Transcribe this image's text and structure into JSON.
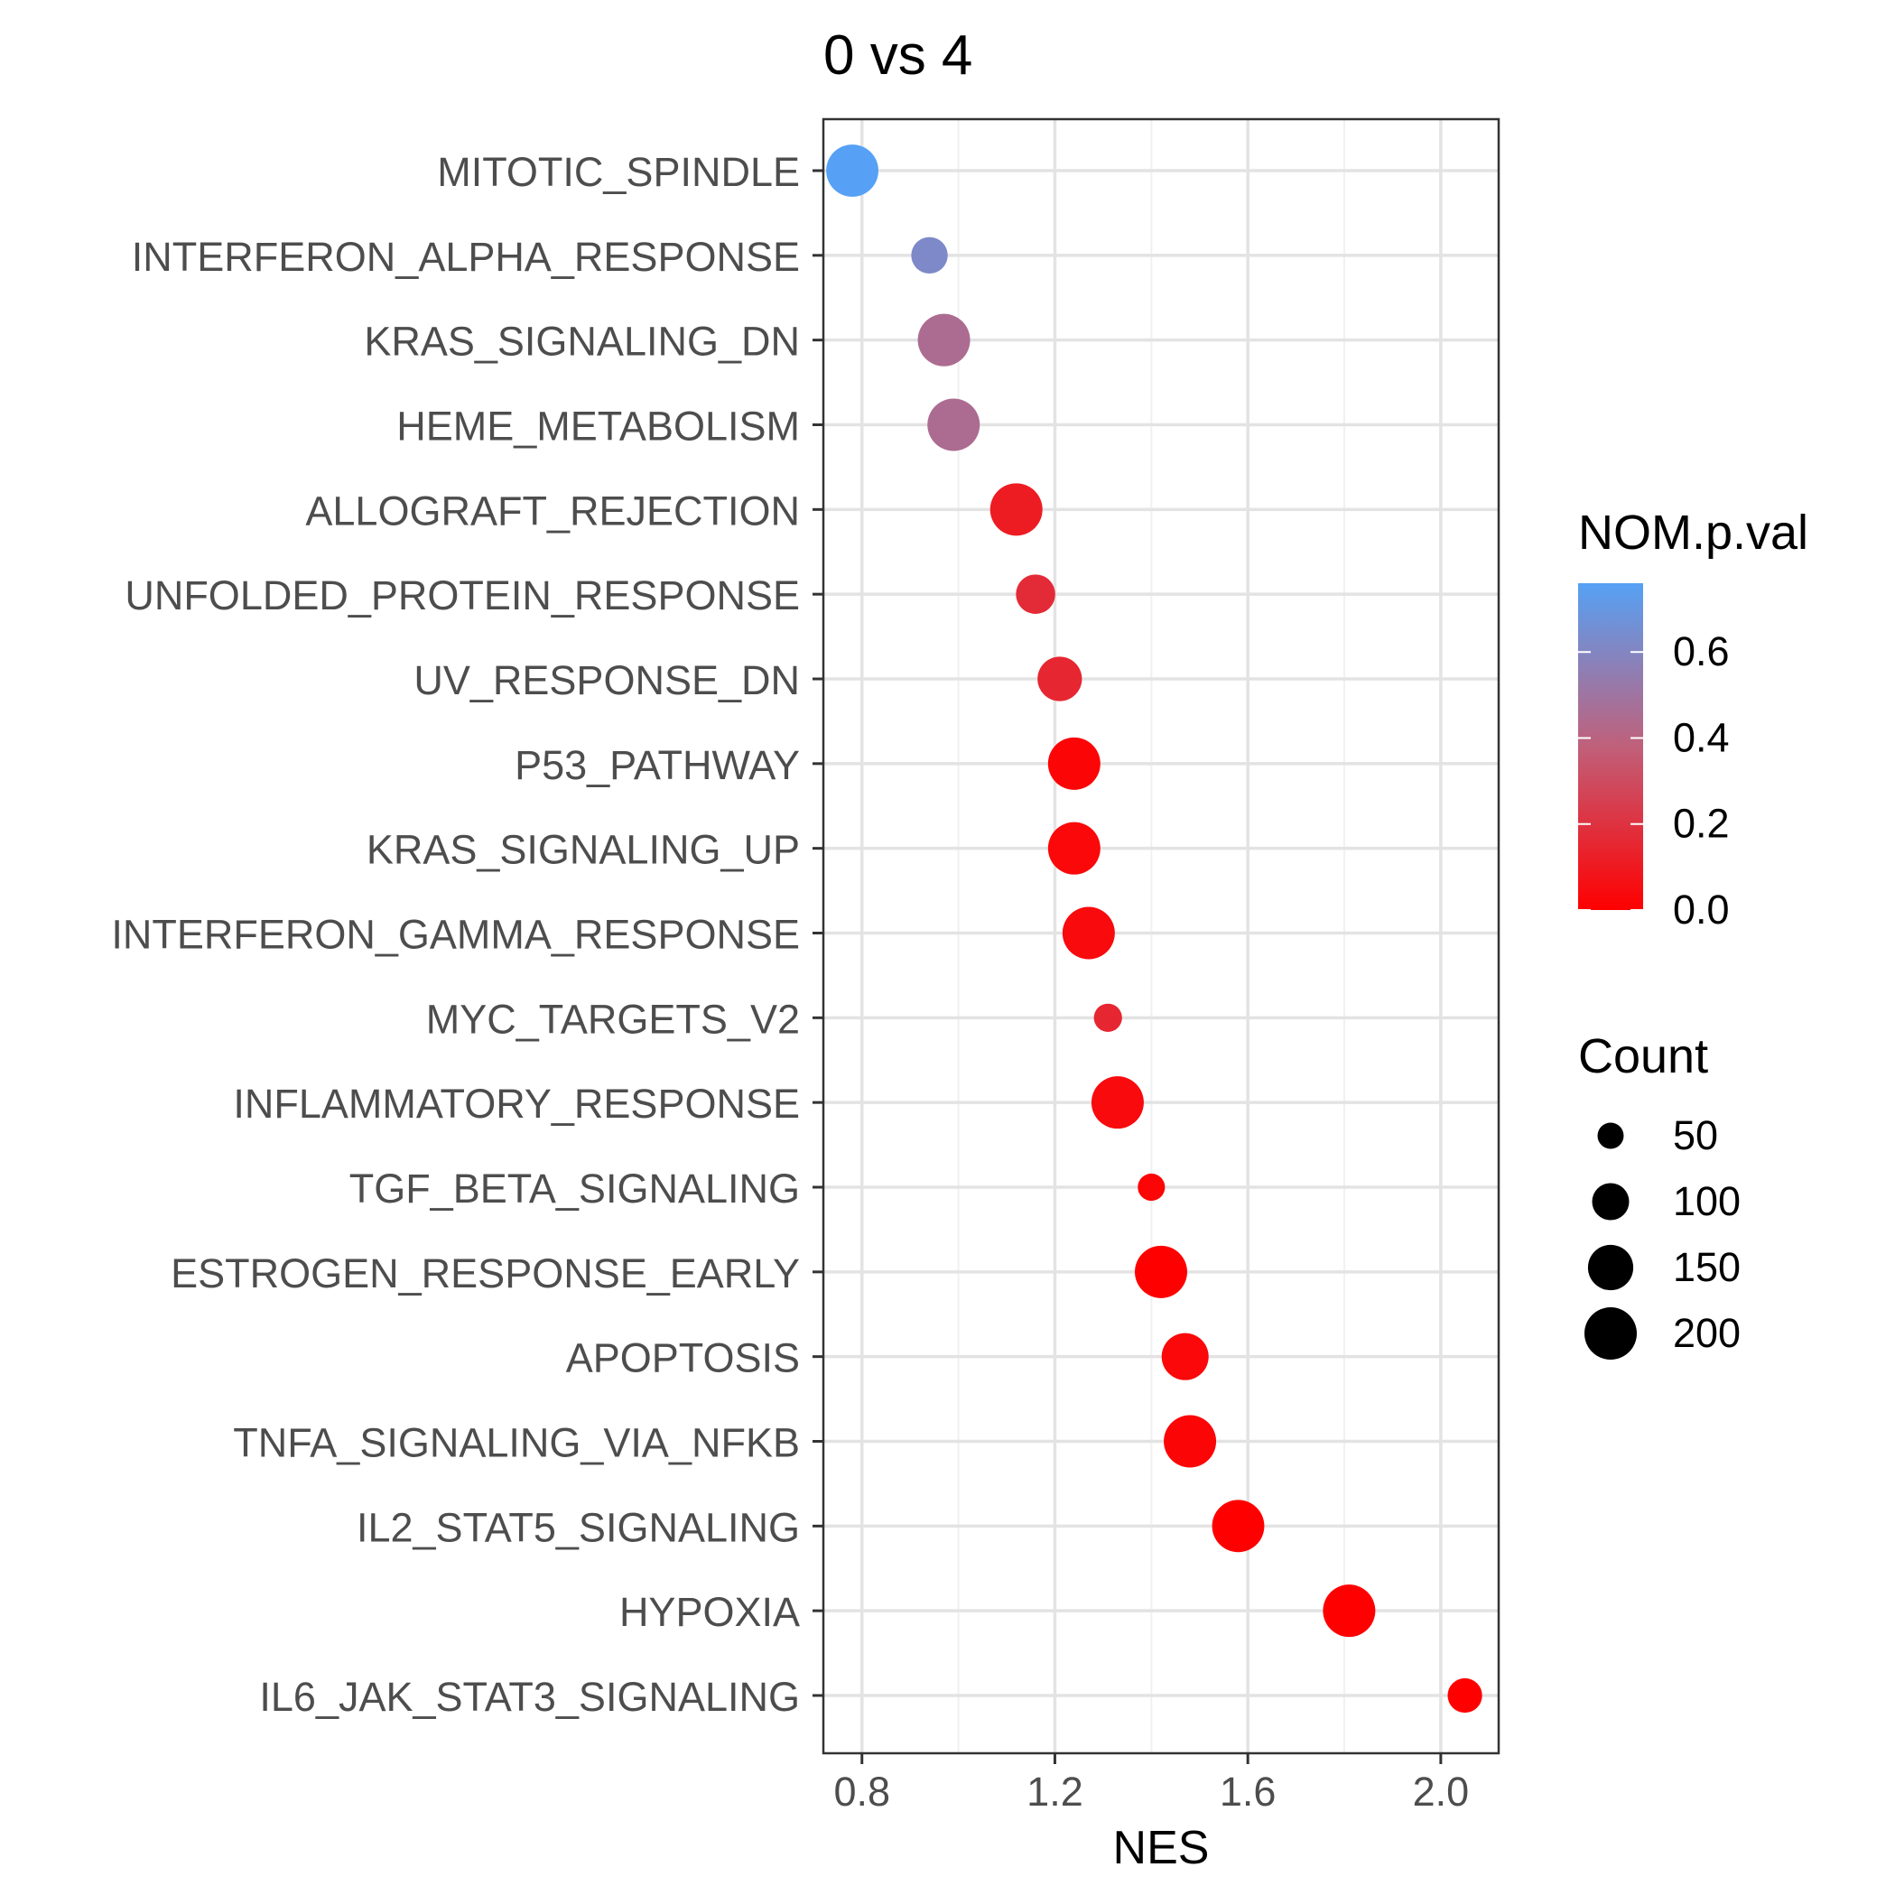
{
  "chart_data": {
    "type": "scatter",
    "title": "0 vs 4",
    "xlabel": "NES",
    "ylabel": "",
    "xlim": [
      0.72,
      2.12
    ],
    "xticks": [
      "0.8",
      "1.2",
      "1.6",
      "2.0"
    ],
    "grid": true,
    "legend_position": "right",
    "color_legend": {
      "title": "NOM.p.val",
      "range": [
        0.0,
        0.76
      ],
      "low_color": "#ff0000",
      "mid_color": "#c0607a",
      "high_color": "#56a1f5",
      "ticks": [
        "0.0",
        "0.2",
        "0.4",
        "0.6"
      ]
    },
    "size_legend": {
      "title": "Count",
      "labels": [
        "50",
        "100",
        "150",
        "200"
      ]
    },
    "points": [
      {
        "term": "IL6_JAK_STAT3_SIGNALING",
        "nes": 2.05,
        "pval": 0.0,
        "count": 87
      },
      {
        "term": "HYPOXIA",
        "nes": 1.81,
        "pval": 0.0,
        "count": 200
      },
      {
        "term": "IL2_STAT5_SIGNALING",
        "nes": 1.58,
        "pval": 0.0,
        "count": 199
      },
      {
        "term": "TNFA_SIGNALING_VIA_NFKB",
        "nes": 1.48,
        "pval": 0.02,
        "count": 200
      },
      {
        "term": "APOPTOSIS",
        "nes": 1.47,
        "pval": 0.03,
        "count": 161
      },
      {
        "term": "ESTROGEN_RESPONSE_EARLY",
        "nes": 1.42,
        "pval": 0.0,
        "count": 200
      },
      {
        "term": "TGF_BETA_SIGNALING",
        "nes": 1.4,
        "pval": 0.02,
        "count": 54
      },
      {
        "term": "INFLAMMATORY_RESPONSE",
        "nes": 1.33,
        "pval": 0.04,
        "count": 200
      },
      {
        "term": "MYC_TARGETS_V2",
        "nes": 1.31,
        "pval": 0.15,
        "count": 58
      },
      {
        "term": "INTERFERON_GAMMA_RESPONSE",
        "nes": 1.27,
        "pval": 0.04,
        "count": 200
      },
      {
        "term": "KRAS_SIGNALING_UP",
        "nes": 1.24,
        "pval": 0.03,
        "count": 200
      },
      {
        "term": "P53_PATHWAY",
        "nes": 1.24,
        "pval": 0.02,
        "count": 200
      },
      {
        "term": "UV_RESPONSE_DN",
        "nes": 1.21,
        "pval": 0.15,
        "count": 144
      },
      {
        "term": "UNFOLDED_PROTEIN_RESPONSE",
        "nes": 1.16,
        "pval": 0.17,
        "count": 113
      },
      {
        "term": "ALLOGRAFT_REJECTION",
        "nes": 1.12,
        "pval": 0.11,
        "count": 200
      },
      {
        "term": "HEME_METABOLISM",
        "nes": 0.99,
        "pval": 0.45,
        "count": 200
      },
      {
        "term": "KRAS_SIGNALING_DN",
        "nes": 0.97,
        "pval": 0.45,
        "count": 200
      },
      {
        "term": "INTERFERON_ALPHA_RESPONSE",
        "nes": 0.94,
        "pval": 0.62,
        "count": 97
      },
      {
        "term": "MITOTIC_SPINDLE",
        "nes": 0.78,
        "pval": 0.76,
        "count": 199
      }
    ]
  }
}
